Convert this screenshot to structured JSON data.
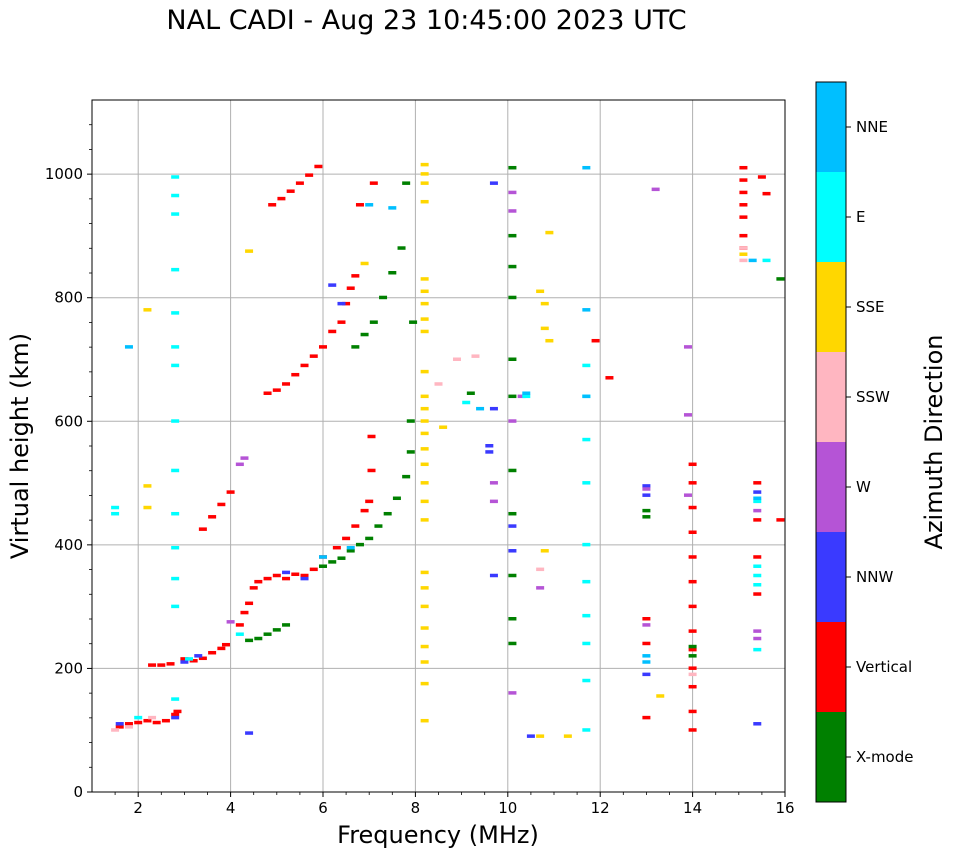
{
  "chart_data": {
    "type": "scatter",
    "title": "NAL CADI - Aug 23 10:45:00 2023 UTC",
    "xlabel": "Frequency (MHz)",
    "ylabel": "Virtual height (km)",
    "xlim": [
      1,
      16
    ],
    "ylim": [
      0,
      1120
    ],
    "xticks": [
      2,
      4,
      6,
      8,
      10,
      12,
      14,
      16
    ],
    "yticks": [
      0,
      200,
      400,
      600,
      800,
      1000
    ],
    "grid": true,
    "colorbar": {
      "label": "Azimuth Direction",
      "categories": [
        "X-mode",
        "Vertical",
        "NNW",
        "W",
        "SSW",
        "SSE",
        "E",
        "NNE"
      ],
      "colors": [
        "#008000",
        "#ff0000",
        "#3a3aff",
        "#b554d6",
        "#ffb6c1",
        "#ffd700",
        "#00ffff",
        "#00bfff"
      ]
    },
    "series": [
      {
        "name": "Vertical",
        "color": "#ff0000",
        "points": [
          [
            1.6,
            105
          ],
          [
            1.8,
            110
          ],
          [
            2.0,
            112
          ],
          [
            2.2,
            115
          ],
          [
            2.4,
            112
          ],
          [
            2.6,
            115
          ],
          [
            2.8,
            125
          ],
          [
            2.85,
            130
          ],
          [
            2.3,
            205
          ],
          [
            2.5,
            205
          ],
          [
            2.7,
            207
          ],
          [
            3.0,
            215
          ],
          [
            3.2,
            212
          ],
          [
            3.4,
            216
          ],
          [
            3.6,
            225
          ],
          [
            3.8,
            232
          ],
          [
            3.9,
            238
          ],
          [
            4.2,
            270
          ],
          [
            4.3,
            290
          ],
          [
            4.4,
            305
          ],
          [
            4.5,
            330
          ],
          [
            4.6,
            340
          ],
          [
            4.8,
            345
          ],
          [
            5.0,
            350
          ],
          [
            5.2,
            345
          ],
          [
            5.4,
            352
          ],
          [
            5.6,
            350
          ],
          [
            5.8,
            360
          ],
          [
            6.0,
            380
          ],
          [
            6.3,
            395
          ],
          [
            6.5,
            410
          ],
          [
            6.7,
            430
          ],
          [
            6.9,
            455
          ],
          [
            7.0,
            470
          ],
          [
            7.05,
            520
          ],
          [
            7.05,
            575
          ],
          [
            3.4,
            425
          ],
          [
            3.6,
            445
          ],
          [
            3.8,
            465
          ],
          [
            4.0,
            485
          ],
          [
            4.8,
            645
          ],
          [
            5.0,
            650
          ],
          [
            5.2,
            660
          ],
          [
            5.4,
            675
          ],
          [
            5.6,
            690
          ],
          [
            5.8,
            705
          ],
          [
            6.0,
            720
          ],
          [
            6.2,
            745
          ],
          [
            6.4,
            760
          ],
          [
            6.5,
            790
          ],
          [
            6.6,
            815
          ],
          [
            6.7,
            835
          ],
          [
            4.9,
            950
          ],
          [
            5.1,
            960
          ],
          [
            5.3,
            972
          ],
          [
            5.5,
            985
          ],
          [
            5.7,
            998
          ],
          [
            5.9,
            1012
          ],
          [
            6.8,
            950
          ],
          [
            7.1,
            985
          ],
          [
            14.0,
            100
          ],
          [
            14.0,
            130
          ],
          [
            14.0,
            170
          ],
          [
            14.0,
            200
          ],
          [
            14.0,
            230
          ],
          [
            14.0,
            260
          ],
          [
            14.0,
            300
          ],
          [
            14.0,
            340
          ],
          [
            14.0,
            380
          ],
          [
            14.0,
            420
          ],
          [
            14.0,
            460
          ],
          [
            14.0,
            500
          ],
          [
            14.0,
            530
          ],
          [
            13.0,
            280
          ],
          [
            13.0,
            240
          ],
          [
            13.0,
            120
          ],
          [
            15.1,
            1010
          ],
          [
            15.1,
            990
          ],
          [
            15.1,
            970
          ],
          [
            15.1,
            950
          ],
          [
            15.1,
            930
          ],
          [
            15.1,
            900
          ],
          [
            15.1,
            880
          ],
          [
            15.4,
            500
          ],
          [
            15.4,
            440
          ],
          [
            15.4,
            380
          ],
          [
            15.4,
            320
          ],
          [
            15.9,
            440
          ],
          [
            15.5,
            995
          ],
          [
            15.6,
            968
          ],
          [
            12.2,
            670
          ],
          [
            11.9,
            730
          ]
        ]
      },
      {
        "name": "X-mode",
        "color": "#008000",
        "points": [
          [
            4.4,
            245
          ],
          [
            4.6,
            248
          ],
          [
            4.8,
            255
          ],
          [
            5.0,
            262
          ],
          [
            5.2,
            270
          ],
          [
            6.0,
            365
          ],
          [
            6.2,
            372
          ],
          [
            6.4,
            378
          ],
          [
            6.6,
            390
          ],
          [
            6.8,
            400
          ],
          [
            7.0,
            410
          ],
          [
            7.2,
            430
          ],
          [
            7.4,
            450
          ],
          [
            7.6,
            475
          ],
          [
            7.8,
            510
          ],
          [
            7.9,
            550
          ],
          [
            7.9,
            600
          ],
          [
            6.7,
            720
          ],
          [
            6.9,
            740
          ],
          [
            7.1,
            760
          ],
          [
            7.3,
            800
          ],
          [
            7.5,
            840
          ],
          [
            7.7,
            880
          ],
          [
            7.8,
            985
          ],
          [
            7.95,
            760
          ],
          [
            10.1,
            1010
          ],
          [
            10.1,
            900
          ],
          [
            10.1,
            850
          ],
          [
            10.1,
            800
          ],
          [
            10.1,
            700
          ],
          [
            10.1,
            640
          ],
          [
            10.1,
            520
          ],
          [
            10.1,
            450
          ],
          [
            10.1,
            350
          ],
          [
            10.1,
            280
          ],
          [
            10.1,
            240
          ],
          [
            9.2,
            645
          ],
          [
            13.0,
            455
          ],
          [
            13.0,
            445
          ],
          [
            14.0,
            235
          ],
          [
            14.0,
            220
          ],
          [
            15.9,
            830
          ]
        ]
      },
      {
        "name": "NNW",
        "color": "#3a3aff",
        "points": [
          [
            1.6,
            110
          ],
          [
            2.8,
            120
          ],
          [
            3.0,
            210
          ],
          [
            3.3,
            220
          ],
          [
            4.4,
            95
          ],
          [
            5.2,
            355
          ],
          [
            5.6,
            345
          ],
          [
            6.2,
            820
          ],
          [
            6.4,
            790
          ],
          [
            9.6,
            560
          ],
          [
            9.6,
            550
          ],
          [
            9.7,
            620
          ],
          [
            10.1,
            430
          ],
          [
            10.1,
            390
          ],
          [
            13.0,
            495
          ],
          [
            13.0,
            480
          ],
          [
            13.0,
            190
          ],
          [
            15.4,
            485
          ],
          [
            15.4,
            110
          ],
          [
            10.5,
            90
          ],
          [
            9.7,
            350
          ],
          [
            9.7,
            985
          ]
        ]
      },
      {
        "name": "W",
        "color": "#b554d6",
        "points": [
          [
            4.2,
            530
          ],
          [
            4.3,
            540
          ],
          [
            4.0,
            275
          ],
          [
            9.7,
            500
          ],
          [
            9.7,
            470
          ],
          [
            10.1,
            970
          ],
          [
            10.1,
            940
          ],
          [
            10.1,
            600
          ],
          [
            10.1,
            160
          ],
          [
            10.7,
            330
          ],
          [
            13.0,
            490
          ],
          [
            13.2,
            975
          ],
          [
            13.0,
            270
          ],
          [
            13.9,
            720
          ],
          [
            13.9,
            610
          ],
          [
            13.9,
            480
          ],
          [
            15.4,
            260
          ],
          [
            15.4,
            248
          ],
          [
            15.4,
            455
          ],
          [
            10.3,
            640
          ]
        ]
      },
      {
        "name": "SSW",
        "color": "#ffb6c1",
        "points": [
          [
            1.5,
            100
          ],
          [
            1.8,
            105
          ],
          [
            2.3,
            120
          ],
          [
            8.5,
            660
          ],
          [
            8.9,
            700
          ],
          [
            9.3,
            705
          ],
          [
            10.7,
            360
          ],
          [
            14.0,
            190
          ],
          [
            15.1,
            880
          ],
          [
            15.1,
            860
          ]
        ]
      },
      {
        "name": "SSE",
        "color": "#ffd700",
        "points": [
          [
            8.2,
            1015
          ],
          [
            8.2,
            1000
          ],
          [
            8.2,
            985
          ],
          [
            8.2,
            955
          ],
          [
            8.2,
            830
          ],
          [
            8.2,
            810
          ],
          [
            8.2,
            790
          ],
          [
            8.2,
            765
          ],
          [
            8.2,
            745
          ],
          [
            8.2,
            680
          ],
          [
            8.2,
            640
          ],
          [
            8.2,
            620
          ],
          [
            8.2,
            600
          ],
          [
            8.2,
            580
          ],
          [
            8.2,
            555
          ],
          [
            8.2,
            530
          ],
          [
            8.2,
            500
          ],
          [
            8.2,
            470
          ],
          [
            8.2,
            440
          ],
          [
            8.2,
            355
          ],
          [
            8.2,
            330
          ],
          [
            8.2,
            300
          ],
          [
            8.2,
            265
          ],
          [
            8.2,
            235
          ],
          [
            8.2,
            210
          ],
          [
            8.2,
            175
          ],
          [
            8.2,
            115
          ],
          [
            8.6,
            590
          ],
          [
            10.7,
            810
          ],
          [
            10.8,
            790
          ],
          [
            10.8,
            750
          ],
          [
            10.9,
            730
          ],
          [
            10.9,
            905
          ],
          [
            10.8,
            390
          ],
          [
            11.3,
            90
          ],
          [
            10.7,
            90
          ],
          [
            13.3,
            155
          ],
          [
            4.4,
            875
          ],
          [
            6.9,
            855
          ],
          [
            2.2,
            780
          ],
          [
            2.2,
            495
          ],
          [
            2.2,
            460
          ],
          [
            15.1,
            870
          ]
        ]
      },
      {
        "name": "E",
        "color": "#00ffff",
        "points": [
          [
            1.5,
            460
          ],
          [
            1.5,
            450
          ],
          [
            2.0,
            120
          ],
          [
            2.8,
            995
          ],
          [
            2.8,
            965
          ],
          [
            2.8,
            935
          ],
          [
            2.8,
            845
          ],
          [
            2.8,
            775
          ],
          [
            2.8,
            720
          ],
          [
            2.8,
            690
          ],
          [
            2.8,
            600
          ],
          [
            2.8,
            520
          ],
          [
            2.8,
            450
          ],
          [
            2.8,
            395
          ],
          [
            2.8,
            345
          ],
          [
            2.8,
            300
          ],
          [
            2.8,
            150
          ],
          [
            3.1,
            215
          ],
          [
            4.2,
            255
          ],
          [
            9.1,
            630
          ],
          [
            10.4,
            640
          ],
          [
            11.7,
            690
          ],
          [
            11.7,
            640
          ],
          [
            11.7,
            570
          ],
          [
            11.7,
            500
          ],
          [
            11.7,
            400
          ],
          [
            11.7,
            340
          ],
          [
            11.7,
            285
          ],
          [
            11.7,
            240
          ],
          [
            11.7,
            180
          ],
          [
            11.7,
            100
          ],
          [
            15.4,
            365
          ],
          [
            15.4,
            350
          ],
          [
            15.4,
            335
          ],
          [
            15.4,
            230
          ],
          [
            15.4,
            470
          ],
          [
            15.6,
            860
          ]
        ]
      },
      {
        "name": "NNE",
        "color": "#00bfff",
        "points": [
          [
            1.8,
            720
          ],
          [
            6.0,
            380
          ],
          [
            6.6,
            395
          ],
          [
            7.0,
            950
          ],
          [
            7.5,
            945
          ],
          [
            9.4,
            620
          ],
          [
            10.4,
            645
          ],
          [
            11.7,
            1010
          ],
          [
            11.7,
            780
          ],
          [
            11.7,
            640
          ],
          [
            13.0,
            220
          ],
          [
            13.0,
            210
          ],
          [
            15.4,
            475
          ],
          [
            15.3,
            860
          ]
        ]
      }
    ]
  }
}
